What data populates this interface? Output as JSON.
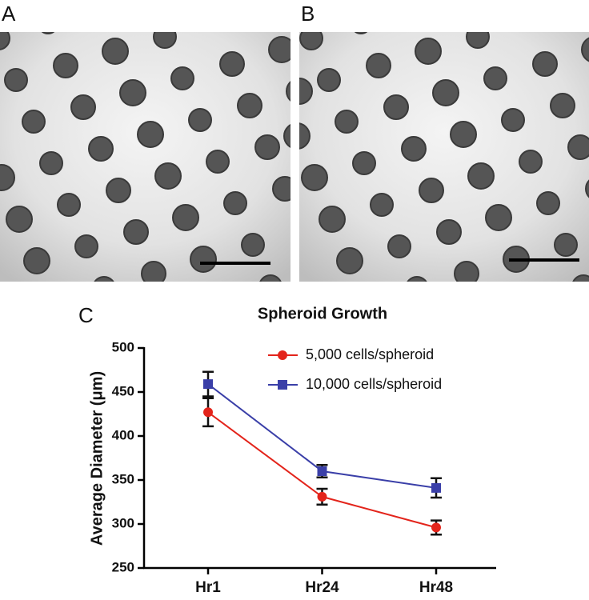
{
  "panel_labels": [
    "A",
    "B",
    "C"
  ],
  "chart_data": {
    "type": "line",
    "title": "Spheroid Growth",
    "y_label": "Average Diameter (μm)",
    "categories": [
      "Hr1",
      "Hr24",
      "Hr48"
    ],
    "series": [
      {
        "name": "5,000 cells/spheroid",
        "color": "#e3241b",
        "marker": "circle",
        "values": [
          427,
          331,
          296
        ],
        "errors": [
          16,
          9,
          8
        ]
      },
      {
        "name": "10,000 cells/spheroid",
        "color": "#3a3fa8",
        "marker": "square",
        "values": [
          459,
          360,
          341
        ],
        "errors": [
          14,
          7,
          11
        ]
      }
    ],
    "ylim": [
      250,
      500
    ],
    "yticks": [
      250,
      300,
      350,
      400,
      450,
      500
    ],
    "legend": "upper right"
  }
}
